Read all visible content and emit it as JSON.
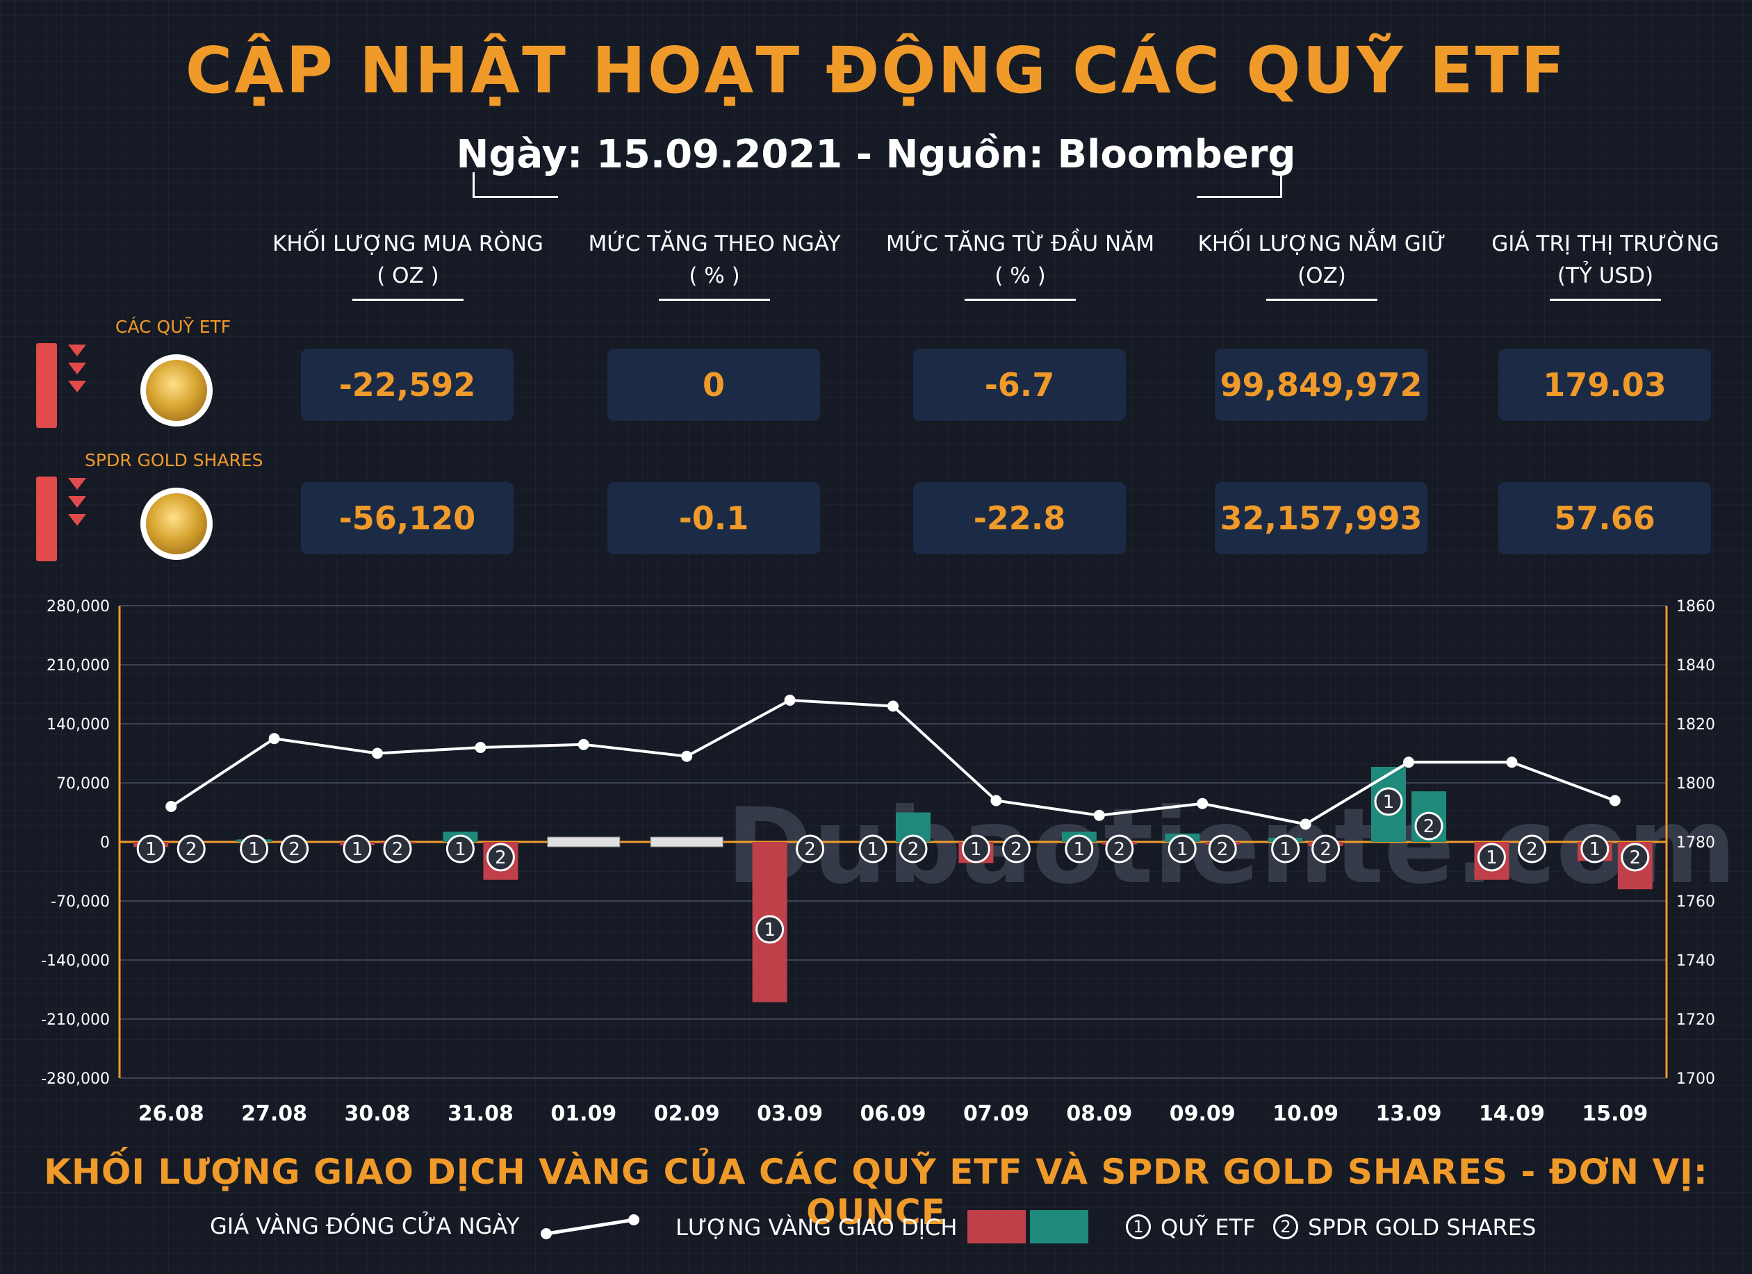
{
  "header": {
    "title": "CẬP NHẬT HOẠT ĐỘNG CÁC QUỸ ETF",
    "subtitle": "Ngày: 15.09.2021 - Nguồn: Bloomberg"
  },
  "columns": [
    {
      "line1": "KHỐI LƯỢNG MUA RÒNG",
      "line2": "( OZ )"
    },
    {
      "line1": "MỨC TĂNG THEO NGÀY",
      "line2": "( % )"
    },
    {
      "line1": "MỨC TĂNG TỪ ĐẦU NĂM",
      "line2": "( % )"
    },
    {
      "line1": "KHỐI LƯỢNG NẮM GIỮ",
      "line2": "(OZ)"
    },
    {
      "line1": "GIÁ TRỊ THỊ TRƯỜNG",
      "line2": "(TỶ USD)"
    }
  ],
  "rows": [
    {
      "label": "CÁC QUỸ ETF",
      "values": [
        "-22,592",
        "0",
        "-6.7",
        "99,849,972",
        "179.03"
      ]
    },
    {
      "label": "SPDR GOLD SHARES",
      "values": [
        "-56,120",
        "-0.1",
        "-22.8",
        "32,157,993",
        "57.66"
      ]
    }
  ],
  "colors": {
    "accent": "#f09a2a",
    "negative": "#c0404a",
    "positive": "#1f8a7c",
    "down_indicator": "#e24b4b",
    "value_box": "#1c2b45",
    "price_line": "#ffffff"
  },
  "chart_data": {
    "type": "bar",
    "categories": [
      "26.08",
      "27.08",
      "30.08",
      "31.08",
      "01.09",
      "02.09",
      "03.09",
      "06.09",
      "07.09",
      "08.09",
      "09.09",
      "10.09",
      "13.09",
      "14.09",
      "15.09"
    ],
    "series": [
      {
        "name": "1",
        "values": [
          -6000,
          3000,
          -4000,
          12000,
          0,
          0,
          -190000,
          0,
          -25000,
          12000,
          10000,
          5000,
          89000,
          -45000,
          -22592
        ]
      },
      {
        "name": "2",
        "values": [
          0,
          0,
          -2000,
          -45000,
          0,
          0,
          0,
          35000,
          0,
          -3000,
          -3000,
          -5000,
          60000,
          0,
          -56120
        ]
      }
    ],
    "line": {
      "name": "GIÁ VÀNG ĐÓNG CỬA NGÀY",
      "values": [
        1792,
        1815,
        1810,
        1812,
        1813,
        1809,
        1828,
        1826,
        1794,
        1789,
        1793,
        1786,
        1807,
        1807,
        1794
      ]
    },
    "yticks_left": [
      "280,000",
      "210,000",
      "140,000",
      "70,000",
      "0",
      "-70,000",
      "-140,000",
      "-210,000",
      "-280,000"
    ],
    "yticks_right": [
      "1860",
      "1840",
      "1820",
      "1800",
      "1780",
      "1760",
      "1740",
      "1720",
      "1700"
    ],
    "ylim_left": [
      -280000,
      280000
    ],
    "ylim_right": [
      1700,
      1860
    ],
    "title": "KHỐI LƯỢNG GIAO DỊCH VÀNG CỦA CÁC QUỸ ETF VÀ SPDR GOLD SHARES - ĐƠN VỊ: OUNCE",
    "grid": true
  },
  "legend": {
    "price_label": "GIÁ VÀNG ĐÓNG CỬA NGÀY",
    "volume_label": "LƯỢNG VÀNG GIAO DỊCH",
    "etf_num": "1",
    "etf_label": "QUỸ ETF",
    "spdr_num": "2",
    "spdr_label": "SPDR GOLD SHARES"
  },
  "watermark": "Dubaotiente.com"
}
